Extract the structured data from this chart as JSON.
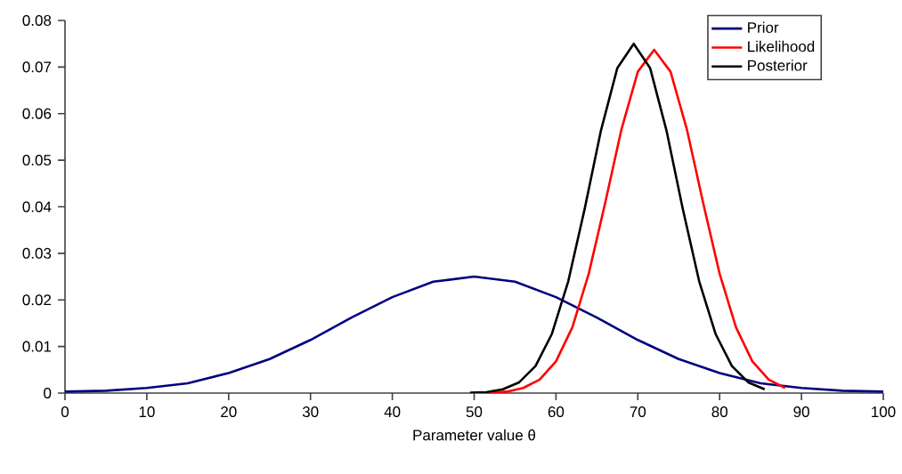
{
  "chart_data": {
    "type": "line",
    "xlabel": "Parameter value θ",
    "xlim": [
      0,
      100
    ],
    "xticks": [
      0,
      10,
      20,
      30,
      40,
      50,
      60,
      70,
      80,
      90,
      100
    ],
    "ylim": [
      0,
      0.08
    ],
    "yticks": [
      0,
      0.01,
      0.02,
      0.03,
      0.04,
      0.05,
      0.06,
      0.07,
      0.08
    ],
    "grid": false,
    "legend": "top right",
    "marker": "none",
    "line_style": "solid",
    "series": [
      {
        "name": "Prior",
        "color": "#000080",
        "x": [
          0,
          5,
          10,
          15,
          20,
          25,
          30,
          35,
          40,
          45,
          50,
          55,
          60,
          65,
          70,
          75,
          80,
          85,
          90,
          95,
          100
        ],
        "values": [
          0.0003,
          0.0005,
          0.0011,
          0.0021,
          0.0043,
          0.0073,
          0.0114,
          0.0162,
          0.0206,
          0.0239,
          0.025,
          0.0239,
          0.0206,
          0.0162,
          0.0114,
          0.0073,
          0.0043,
          0.0021,
          0.0011,
          0.0005,
          0.0003
        ]
      },
      {
        "name": "Likelihood",
        "color": "#ff0000",
        "x": [
          52,
          54,
          56,
          58,
          60,
          62,
          64,
          66,
          68,
          70,
          72,
          74,
          76,
          78,
          80,
          82,
          84,
          86,
          88
        ],
        "values": [
          0.0001,
          0.0003,
          0.0011,
          0.0029,
          0.0068,
          0.0141,
          0.0256,
          0.0407,
          0.0566,
          0.069,
          0.0737,
          0.069,
          0.0566,
          0.0407,
          0.0256,
          0.0141,
          0.0068,
          0.0029,
          0.0011
        ]
      },
      {
        "name": "Posterior",
        "color": "#000000",
        "x": [
          49.5,
          51.5,
          53.5,
          55.5,
          57.5,
          59.5,
          61.5,
          63.5,
          65.5,
          67.5,
          69.5,
          71.5,
          73.5,
          75.5,
          77.5,
          79.5,
          81.5,
          83.5,
          85.5
        ],
        "values": [
          0.0001,
          0.0002,
          0.0008,
          0.0023,
          0.0058,
          0.0127,
          0.024,
          0.0395,
          0.0564,
          0.0698,
          0.075,
          0.0698,
          0.0564,
          0.0395,
          0.024,
          0.0127,
          0.0058,
          0.0023,
          0.0008
        ]
      }
    ]
  }
}
